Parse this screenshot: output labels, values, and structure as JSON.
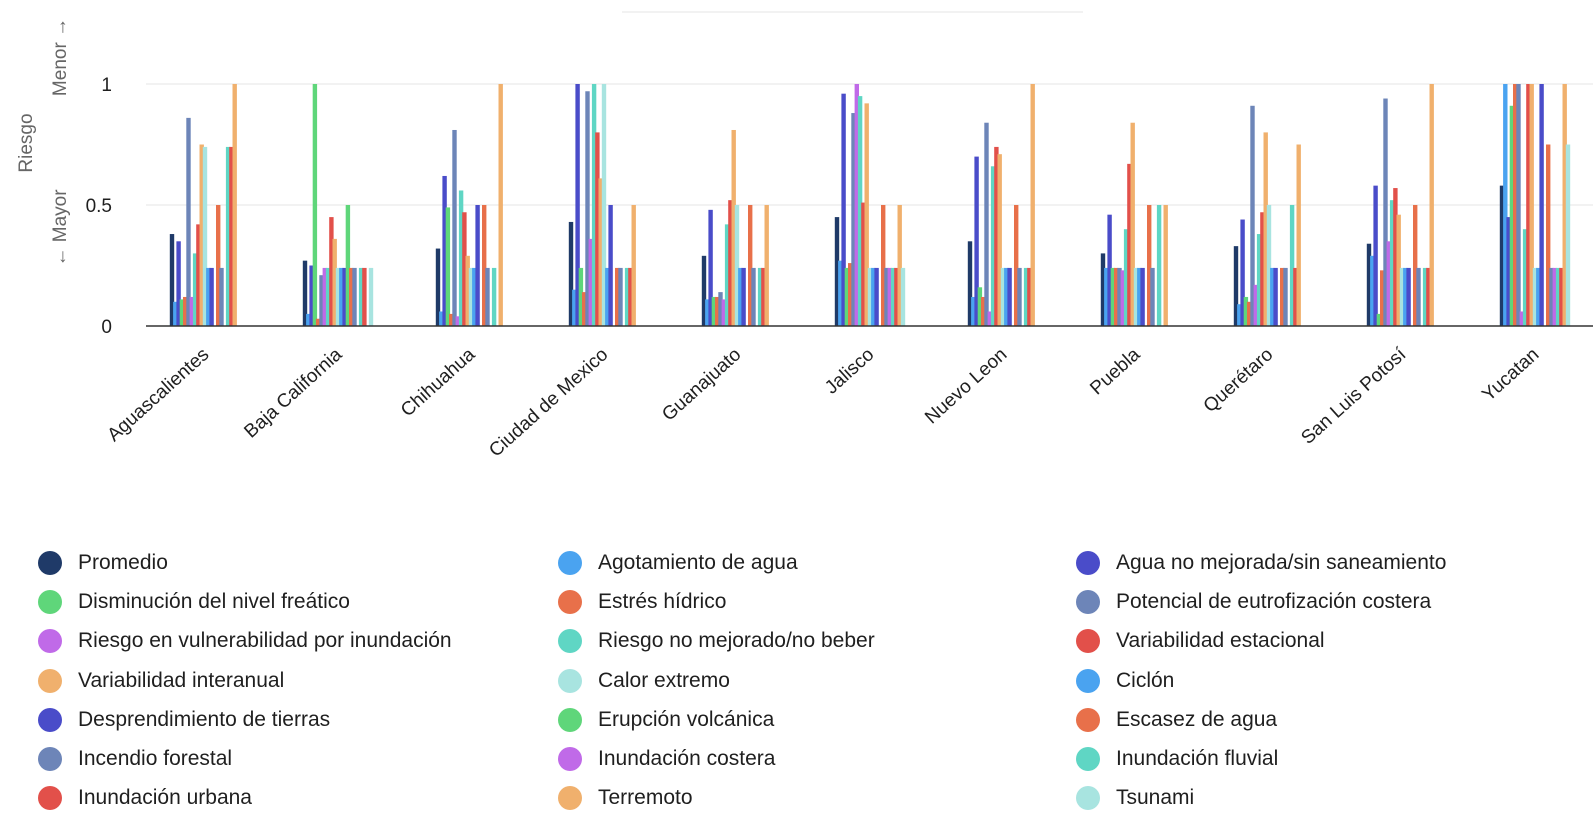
{
  "chart_data": {
    "type": "bar",
    "y_axis": {
      "title_top": "Riesgo",
      "title_upper": "Menor →",
      "title_lower": "← Mayor",
      "ticks": [
        "0",
        "0.5",
        "1"
      ],
      "ylim": [
        0,
        1
      ]
    },
    "grid": true,
    "legend_position": "bottom",
    "categories": [
      "Aguascalientes",
      "Baja California",
      "Chihuahua",
      "Ciudad de Mexico",
      "Guanajuato",
      "Jalisco",
      "Nuevo Leon",
      "Puebla",
      "Querétaro",
      "San Luis Potosí",
      "Yucatan"
    ],
    "series": [
      {
        "name": "Promedio",
        "color": "#1f3a68",
        "values": [
          0.38,
          0.27,
          0.32,
          0.43,
          0.29,
          0.45,
          0.35,
          0.3,
          0.33,
          0.34,
          0.58
        ]
      },
      {
        "name": "Agotamiento de agua",
        "color": "#4aa3f0",
        "values": [
          0.1,
          0.05,
          0.06,
          0.15,
          0.11,
          0.27,
          0.12,
          0.24,
          0.09,
          0.29,
          1.0
        ]
      },
      {
        "name": "Agua no mejorada/sin saneamiento",
        "color": "#4a4cc9",
        "values": [
          0.35,
          0.25,
          0.62,
          1.0,
          0.48,
          0.96,
          0.7,
          0.46,
          0.44,
          0.58,
          0.45
        ]
      },
      {
        "name": "Disminución del nivel freático",
        "color": "#5fd67a",
        "values": [
          0.11,
          1.0,
          0.49,
          0.24,
          0.12,
          0.24,
          0.16,
          0.24,
          0.12,
          0.05,
          0.91
        ]
      },
      {
        "name": "Estrés hídrico",
        "color": "#e8704a",
        "values": [
          0.12,
          0.03,
          0.05,
          0.14,
          0.12,
          0.26,
          0.12,
          0.24,
          0.1,
          0.23,
          1.0
        ]
      },
      {
        "name": "Potencial de eutrofización costera",
        "color": "#6d85b8",
        "values": [
          0.86,
          0.21,
          0.81,
          0.97,
          0.14,
          0.88,
          0.84,
          0.24,
          0.91,
          0.94,
          1.0
        ]
      },
      {
        "name": "Riesgo en vulnerabilidad por inundación",
        "color": "#c06ae8",
        "values": [
          0.12,
          0.24,
          0.04,
          0.36,
          0.11,
          1.0,
          0.06,
          0.23,
          0.17,
          0.35,
          0.06
        ]
      },
      {
        "name": "Riesgo no mejorado/no beber",
        "color": "#5fd6c4",
        "values": [
          0.3,
          0.24,
          0.56,
          1.0,
          0.42,
          0.95,
          0.66,
          0.4,
          0.38,
          0.52,
          0.4
        ]
      },
      {
        "name": "Variabilidad estacional",
        "color": "#e2504a",
        "values": [
          0.42,
          0.45,
          0.47,
          0.8,
          0.52,
          0.51,
          0.74,
          0.67,
          0.47,
          0.57,
          1.0
        ]
      },
      {
        "name": "Variabilidad interanual",
        "color": "#f0b06d",
        "values": [
          0.75,
          0.36,
          0.29,
          0.61,
          0.81,
          0.92,
          0.71,
          0.84,
          0.8,
          0.46,
          1.0
        ]
      },
      {
        "name": "Calor extremo",
        "color": "#a8e4e0",
        "values": [
          0.74,
          0.24,
          0.24,
          1.0,
          0.5,
          0.24,
          0.24,
          0.24,
          0.5,
          0.24,
          0.24
        ]
      },
      {
        "name": "Ciclón",
        "color": "#4aa3f0",
        "values": [
          0.24,
          0.24,
          0.24,
          0.24,
          0.24,
          0.24,
          0.24,
          0.24,
          0.24,
          0.24,
          0.24
        ]
      },
      {
        "name": "Desprendimiento de tierras",
        "color": "#4a4cc9",
        "values": [
          0.24,
          0.24,
          0.5,
          0.5,
          0.24,
          0.24,
          0.24,
          0.24,
          0.24,
          0.24,
          1.0
        ]
      },
      {
        "name": "Erupción volcánica",
        "color": "#5fd67a",
        "values": [
          0.0,
          0.5,
          0.0,
          0.0,
          0.0,
          0.0,
          0.0,
          0.0,
          0.0,
          0.0,
          0.0
        ]
      },
      {
        "name": "Escasez de agua",
        "color": "#e8704a",
        "values": [
          0.5,
          0.24,
          0.5,
          0.24,
          0.5,
          0.5,
          0.5,
          0.5,
          0.24,
          0.5,
          0.75
        ]
      },
      {
        "name": "Incendio forestal",
        "color": "#6d85b8",
        "values": [
          0.24,
          0.24,
          0.24,
          0.24,
          0.24,
          0.24,
          0.24,
          0.24,
          0.24,
          0.24,
          0.24
        ]
      },
      {
        "name": "Inundación costera",
        "color": "#c06ae8",
        "values": [
          0.0,
          0.0,
          0.0,
          0.0,
          0.0,
          0.24,
          0.0,
          0.0,
          0.0,
          0.0,
          0.24
        ]
      },
      {
        "name": "Inundación fluvial",
        "color": "#5fd6c4",
        "values": [
          0.74,
          0.24,
          0.24,
          0.24,
          0.24,
          0.24,
          0.24,
          0.5,
          0.5,
          0.24,
          0.24
        ]
      },
      {
        "name": "Inundación urbana",
        "color": "#e2504a",
        "values": [
          0.74,
          0.24,
          0.0,
          0.24,
          0.24,
          0.24,
          0.24,
          0.0,
          0.24,
          0.24,
          0.24
        ]
      },
      {
        "name": "Terremoto",
        "color": "#f0b06d",
        "values": [
          1.0,
          0.0,
          1.0,
          0.5,
          0.5,
          0.5,
          1.0,
          0.5,
          0.75,
          1.0,
          1.0
        ]
      },
      {
        "name": "Tsunami",
        "color": "#a8e4e0",
        "values": [
          0.0,
          0.24,
          0.0,
          0.0,
          0.0,
          0.24,
          0.0,
          0.0,
          0.0,
          0.0,
          0.75
        ]
      }
    ]
  },
  "legend": {
    "items": [
      {
        "label": "Promedio",
        "color": "#1f3a68"
      },
      {
        "label": "Agotamiento de agua",
        "color": "#4aa3f0"
      },
      {
        "label": "Agua no mejorada/sin saneamiento",
        "color": "#4a4cc9"
      },
      {
        "label": "Disminución del nivel freático",
        "color": "#5fd67a"
      },
      {
        "label": "Estrés hídrico",
        "color": "#e8704a"
      },
      {
        "label": "Potencial de eutrofización costera",
        "color": "#6d85b8"
      },
      {
        "label": "Riesgo en vulnerabilidad por inundación",
        "color": "#c06ae8"
      },
      {
        "label": "Riesgo no mejorado/no beber",
        "color": "#5fd6c4"
      },
      {
        "label": "Variabilidad estacional",
        "color": "#e2504a"
      },
      {
        "label": "Variabilidad interanual",
        "color": "#f0b06d"
      },
      {
        "label": "Calor extremo",
        "color": "#a8e4e0"
      },
      {
        "label": "Ciclón",
        "color": "#4aa3f0"
      },
      {
        "label": "Desprendimiento de tierras",
        "color": "#4a4cc9"
      },
      {
        "label": "Erupción volcánica",
        "color": "#5fd67a"
      },
      {
        "label": "Escasez de agua",
        "color": "#e8704a"
      },
      {
        "label": "Incendio forestal",
        "color": "#6d85b8"
      },
      {
        "label": "Inundación costera",
        "color": "#c06ae8"
      },
      {
        "label": "Inundación fluvial",
        "color": "#5fd6c4"
      },
      {
        "label": "Inundación urbana",
        "color": "#e2504a"
      },
      {
        "label": "Terremoto",
        "color": "#f0b06d"
      },
      {
        "label": "Tsunami",
        "color": "#a8e4e0"
      }
    ]
  }
}
